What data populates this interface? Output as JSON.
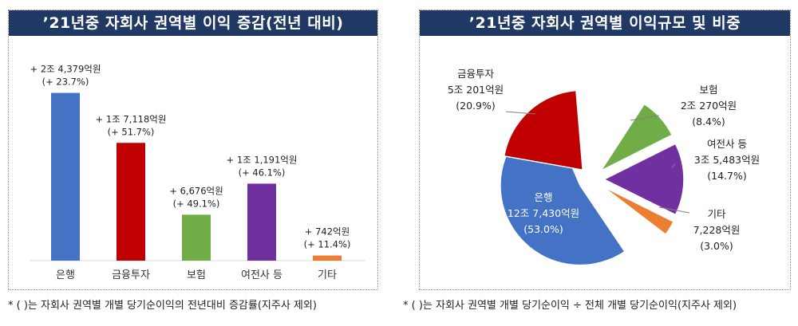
{
  "colors": {
    "title_bg": "#1f3864",
    "bank": "#4472c4",
    "finance": "#c00000",
    "insurance": "#70ad47",
    "credit": "#7030a0",
    "other": "#ed7d31"
  },
  "left": {
    "title": "’21년중 자회사 권역별 이익 증감(전년 대비)",
    "footnote": "* (  )는 자회사 권역별 개별 당기순이익의 전년대비 증감률(지주사 제외)"
  },
  "right": {
    "title": "’21년중 자회사 권역별 이익규모 및 비중",
    "footnote": "* (  )는 자회사 권역별 개별 당기순이익 ÷ 전체 개별 당기순이익(지주사 제외)"
  },
  "chart_data": [
    {
      "type": "bar",
      "title": "’21년중 자회사 권역별 이익 증감(전년 대비)",
      "categories": [
        "은행",
        "금융투자",
        "보험",
        "여전사 등",
        "기타"
      ],
      "values": [
        24379,
        17118,
        6676,
        11191,
        742
      ],
      "value_labels": [
        "+ 2조 4,379억원",
        "+ 1조 7,118억원",
        "+ 6,676억원",
        "+ 1조 1,191억원",
        "+ 742억원"
      ],
      "pct_labels": [
        "(+ 23.7%)",
        "(+ 51.7%)",
        "(+ 49.1%)",
        "(+ 46.1%)",
        "(+ 11.4%)"
      ],
      "colors": [
        "#4472c4",
        "#c00000",
        "#70ad47",
        "#7030a0",
        "#ed7d31"
      ],
      "ylim": [
        0,
        26000
      ],
      "grid": false
    },
    {
      "type": "pie",
      "title": "’21년중 자회사 권역별 이익규모 및 비중",
      "slices": [
        {
          "name": "은행",
          "amount": "12조 7,430억원",
          "pct_label": "(53.0%)",
          "value": 53.0,
          "color": "#4472c4"
        },
        {
          "name": "금융투자",
          "amount": "5조 201억원",
          "pct_label": "(20.9%)",
          "value": 20.9,
          "color": "#c00000"
        },
        {
          "name": "보험",
          "amount": "2조 270억원",
          "pct_label": "(8.4%)",
          "value": 8.4,
          "color": "#70ad47"
        },
        {
          "name": "여전사 등",
          "amount": "3조 5,483억원",
          "pct_label": "(14.7%)",
          "value": 14.7,
          "color": "#7030a0"
        },
        {
          "name": "기타",
          "amount": "7,228억원",
          "pct_label": "(3.0%)",
          "value": 3.0,
          "color": "#ed7d31"
        }
      ],
      "exploded": true
    }
  ]
}
